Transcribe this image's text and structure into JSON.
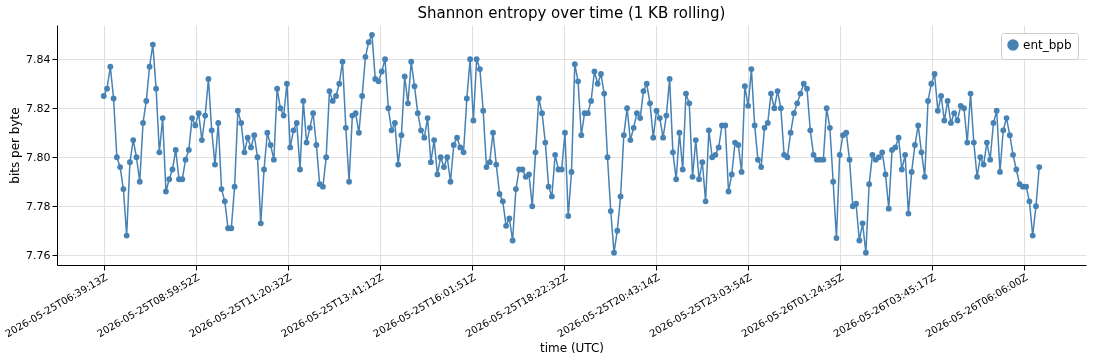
{
  "chart_data": {
    "type": "line",
    "title": "Shannon entropy over time (1 KB rolling)",
    "xlabel": "time (UTC)",
    "ylabel": "bits per byte",
    "xlim": [
      "2026-05-25T05:27:43",
      "2026-05-26T07:40:43"
    ],
    "ylim": [
      7.756,
      7.854
    ],
    "xticks": [
      {
        "value": "2026-05-25T06:39:13",
        "label": "2026-05-25T06:39:13Z"
      },
      {
        "value": "2026-05-25T08:59:52",
        "label": "2026-05-25T08:59:52Z"
      },
      {
        "value": "2026-05-25T11:20:32",
        "label": "2026-05-25T11:20:32Z"
      },
      {
        "value": "2026-05-25T13:41:12",
        "label": "2026-05-25T13:41:12Z"
      },
      {
        "value": "2026-05-25T16:01:51",
        "label": "2026-05-25T16:01:51Z"
      },
      {
        "value": "2026-05-25T18:22:32",
        "label": "2026-05-25T18:22:32Z"
      },
      {
        "value": "2026-05-25T20:43:14",
        "label": "2026-05-25T20:43:14Z"
      },
      {
        "value": "2026-05-25T23:03:54",
        "label": "2026-05-25T23:03:54Z"
      },
      {
        "value": "2026-05-26T01:24:35",
        "label": "2026-05-26T01:24:35Z"
      },
      {
        "value": "2026-05-26T03:45:17",
        "label": "2026-05-26T03:45:17Z"
      },
      {
        "value": "2026-05-26T06:06:00",
        "label": "2026-05-26T06:06:00Z"
      }
    ],
    "yticks": [
      7.76,
      7.78,
      {
        "value": 7.8,
        "label": "7.80"
      },
      7.82,
      7.84
    ],
    "grid": true,
    "legend": "top right",
    "marker": "circle",
    "line_style": "solid",
    "x": [
      "2026-05-25T06:39:13",
      "2026-05-25T06:44:13",
      "2026-05-25T06:49:13",
      "2026-05-25T06:54:13",
      "2026-05-25T06:59:13",
      "2026-05-25T07:04:13",
      "2026-05-25T07:09:13",
      "2026-05-25T07:14:13",
      "2026-05-25T07:19:13",
      "2026-05-25T07:24:13",
      "2026-05-25T07:29:13",
      "2026-05-25T07:34:13",
      "2026-05-25T07:39:13",
      "2026-05-25T07:44:13",
      "2026-05-25T07:49:13",
      "2026-05-25T07:54:13",
      "2026-05-25T07:59:13",
      "2026-05-25T08:04:13",
      "2026-05-25T08:09:13",
      "2026-05-25T08:14:13",
      "2026-05-25T08:19:13",
      "2026-05-25T08:24:13",
      "2026-05-25T08:29:13",
      "2026-05-25T08:34:13",
      "2026-05-25T08:39:13",
      "2026-05-25T08:44:13",
      "2026-05-25T08:49:13",
      "2026-05-25T08:54:13",
      "2026-05-25T08:59:13",
      "2026-05-25T09:04:13",
      "2026-05-25T09:09:13",
      "2026-05-25T09:14:13",
      "2026-05-25T09:19:13",
      "2026-05-25T09:24:13",
      "2026-05-25T09:29:13",
      "2026-05-25T09:34:13",
      "2026-05-25T09:39:13",
      "2026-05-25T09:44:13",
      "2026-05-25T09:49:13",
      "2026-05-25T09:54:13",
      "2026-05-25T09:59:13",
      "2026-05-25T10:04:13",
      "2026-05-25T10:09:13",
      "2026-05-25T10:14:13",
      "2026-05-25T10:19:13",
      "2026-05-25T10:24:13",
      "2026-05-25T10:29:13",
      "2026-05-25T10:34:13",
      "2026-05-25T10:39:13",
      "2026-05-25T10:44:13",
      "2026-05-25T10:49:13",
      "2026-05-25T10:54:13",
      "2026-05-25T10:59:13",
      "2026-05-25T11:04:13",
      "2026-05-25T11:09:13",
      "2026-05-25T11:14:13",
      "2026-05-25T11:19:13",
      "2026-05-25T11:24:13",
      "2026-05-25T11:29:13",
      "2026-05-25T11:34:13",
      "2026-05-25T11:39:13",
      "2026-05-25T11:44:13",
      "2026-05-25T11:49:13",
      "2026-05-25T11:54:13",
      "2026-05-25T11:59:13",
      "2026-05-25T12:04:13",
      "2026-05-25T12:09:13",
      "2026-05-25T12:14:13",
      "2026-05-25T12:19:13",
      "2026-05-25T12:24:13",
      "2026-05-25T12:29:13",
      "2026-05-25T12:34:13",
      "2026-05-25T12:39:13",
      "2026-05-25T12:44:13",
      "2026-05-25T12:49:13",
      "2026-05-25T12:54:13",
      "2026-05-25T12:59:13",
      "2026-05-25T13:04:13",
      "2026-05-25T13:09:13",
      "2026-05-25T13:14:13",
      "2026-05-25T13:19:13",
      "2026-05-25T13:24:13",
      "2026-05-25T13:29:13",
      "2026-05-25T13:34:13",
      "2026-05-25T13:39:13",
      "2026-05-25T13:44:13",
      "2026-05-25T13:49:13",
      "2026-05-25T13:54:13",
      "2026-05-25T13:59:13",
      "2026-05-25T14:04:13",
      "2026-05-25T14:09:13",
      "2026-05-25T14:14:13",
      "2026-05-25T14:19:13",
      "2026-05-25T14:24:13",
      "2026-05-25T14:29:13",
      "2026-05-25T14:34:13",
      "2026-05-25T14:39:13",
      "2026-05-25T14:44:13",
      "2026-05-25T14:49:13",
      "2026-05-25T14:54:13",
      "2026-05-25T14:59:13",
      "2026-05-25T15:04:13",
      "2026-05-25T15:09:13",
      "2026-05-25T15:14:13",
      "2026-05-25T15:19:13",
      "2026-05-25T15:24:13",
      "2026-05-25T15:29:13",
      "2026-05-25T15:34:13",
      "2026-05-25T15:39:13",
      "2026-05-25T15:44:13",
      "2026-05-25T15:49:13",
      "2026-05-25T15:54:13",
      "2026-05-25T15:59:13",
      "2026-05-25T16:04:13",
      "2026-05-25T16:09:13",
      "2026-05-25T16:14:13",
      "2026-05-25T16:19:13",
      "2026-05-25T16:24:13",
      "2026-05-25T16:29:13",
      "2026-05-25T16:34:13",
      "2026-05-25T16:39:13",
      "2026-05-25T16:44:13",
      "2026-05-25T16:49:13",
      "2026-05-25T16:54:13",
      "2026-05-25T16:59:13",
      "2026-05-25T17:04:13",
      "2026-05-25T17:09:13",
      "2026-05-25T17:14:13",
      "2026-05-25T17:19:13",
      "2026-05-25T17:24:13",
      "2026-05-25T17:29:13",
      "2026-05-25T17:34:13",
      "2026-05-25T17:39:13",
      "2026-05-25T17:44:13",
      "2026-05-25T17:49:13",
      "2026-05-25T17:54:13",
      "2026-05-25T17:59:13",
      "2026-05-25T18:04:13",
      "2026-05-25T18:09:13",
      "2026-05-25T18:14:13",
      "2026-05-25T18:19:13",
      "2026-05-25T18:24:13",
      "2026-05-25T18:29:13",
      "2026-05-25T18:34:13",
      "2026-05-25T18:39:13",
      "2026-05-25T18:44:13",
      "2026-05-25T18:49:13",
      "2026-05-25T18:54:13",
      "2026-05-25T18:59:13",
      "2026-05-25T19:04:13",
      "2026-05-25T19:09:13",
      "2026-05-25T19:14:13",
      "2026-05-25T19:19:13",
      "2026-05-25T19:24:13",
      "2026-05-25T19:29:13",
      "2026-05-25T19:34:13",
      "2026-05-25T19:39:13",
      "2026-05-25T19:44:13",
      "2026-05-25T19:49:13",
      "2026-05-25T19:54:13",
      "2026-05-25T19:59:13",
      "2026-05-25T20:04:13",
      "2026-05-25T20:09:13",
      "2026-05-25T20:14:13",
      "2026-05-25T20:19:13",
      "2026-05-25T20:24:13",
      "2026-05-25T20:29:13",
      "2026-05-25T20:34:13",
      "2026-05-25T20:39:13",
      "2026-05-25T20:44:13",
      "2026-05-25T20:49:13",
      "2026-05-25T20:54:13",
      "2026-05-25T20:59:13",
      "2026-05-25T21:04:13",
      "2026-05-25T21:09:13",
      "2026-05-25T21:14:13",
      "2026-05-25T21:19:13",
      "2026-05-25T21:24:13",
      "2026-05-25T21:29:13",
      "2026-05-25T21:34:13",
      "2026-05-25T21:39:13",
      "2026-05-25T21:44:13",
      "2026-05-25T21:49:13",
      "2026-05-25T21:54:13",
      "2026-05-25T21:59:13",
      "2026-05-25T22:04:13",
      "2026-05-25T22:09:13",
      "2026-05-25T22:14:13",
      "2026-05-25T22:19:13",
      "2026-05-25T22:24:13",
      "2026-05-25T22:29:13",
      "2026-05-25T22:34:13",
      "2026-05-25T22:39:13",
      "2026-05-25T22:44:13",
      "2026-05-25T22:49:13",
      "2026-05-25T22:54:13",
      "2026-05-25T22:59:13",
      "2026-05-25T23:04:13",
      "2026-05-25T23:09:13",
      "2026-05-25T23:14:13",
      "2026-05-25T23:19:13",
      "2026-05-25T23:24:13",
      "2026-05-25T23:29:13",
      "2026-05-25T23:34:13",
      "2026-05-25T23:39:13",
      "2026-05-25T23:44:13",
      "2026-05-25T23:49:13",
      "2026-05-25T23:54:13",
      "2026-05-25T23:59:13",
      "2026-05-26T00:04:13",
      "2026-05-26T00:09:13",
      "2026-05-26T00:14:13",
      "2026-05-26T00:19:13",
      "2026-05-26T00:24:13",
      "2026-05-26T00:29:13",
      "2026-05-26T00:34:13",
      "2026-05-26T00:39:13",
      "2026-05-26T00:44:13",
      "2026-05-26T00:49:13",
      "2026-05-26T00:54:13",
      "2026-05-26T00:59:13",
      "2026-05-26T01:04:13",
      "2026-05-26T01:09:13",
      "2026-05-26T01:14:13",
      "2026-05-26T01:19:13",
      "2026-05-26T01:24:13",
      "2026-05-26T01:29:13",
      "2026-05-26T01:34:13",
      "2026-05-26T01:39:13",
      "2026-05-26T01:44:13",
      "2026-05-26T01:49:13",
      "2026-05-26T01:54:13",
      "2026-05-26T01:59:13",
      "2026-05-26T02:04:13",
      "2026-05-26T02:09:13",
      "2026-05-26T02:14:13",
      "2026-05-26T02:19:13",
      "2026-05-26T02:24:13",
      "2026-05-26T02:29:13",
      "2026-05-26T02:34:13",
      "2026-05-26T02:39:13",
      "2026-05-26T02:44:13",
      "2026-05-26T02:49:13",
      "2026-05-26T02:54:13",
      "2026-05-26T02:59:13",
      "2026-05-26T03:04:13",
      "2026-05-26T03:09:13",
      "2026-05-26T03:14:13",
      "2026-05-26T03:19:13",
      "2026-05-26T03:24:13",
      "2026-05-26T03:29:13",
      "2026-05-26T03:34:13",
      "2026-05-26T03:39:13",
      "2026-05-26T03:44:13",
      "2026-05-26T03:49:13",
      "2026-05-26T03:54:13",
      "2026-05-26T03:59:13",
      "2026-05-26T04:04:13",
      "2026-05-26T04:09:13",
      "2026-05-26T04:14:13",
      "2026-05-26T04:19:13",
      "2026-05-26T04:24:13",
      "2026-05-26T04:29:13",
      "2026-05-26T04:34:13",
      "2026-05-26T04:39:13",
      "2026-05-26T04:44:13",
      "2026-05-26T04:49:13",
      "2026-05-26T04:54:13",
      "2026-05-26T04:59:13",
      "2026-05-26T05:04:13",
      "2026-05-26T05:09:13",
      "2026-05-26T05:14:13",
      "2026-05-26T05:19:13",
      "2026-05-26T05:24:13",
      "2026-05-26T05:29:13",
      "2026-05-26T05:34:13",
      "2026-05-26T05:39:13",
      "2026-05-26T05:44:13",
      "2026-05-26T05:49:13",
      "2026-05-26T05:54:13",
      "2026-05-26T05:59:13",
      "2026-05-26T06:04:13",
      "2026-05-26T06:09:13",
      "2026-05-26T06:14:13",
      "2026-05-26T06:19:13",
      "2026-05-26T06:24:13",
      "2026-05-26T06:29:13"
    ],
    "series": [
      {
        "name": "ent_bpb",
        "color": "#4682b4",
        "values": [
          7.825,
          7.828,
          7.837,
          7.824,
          7.8,
          7.796,
          7.787,
          7.768,
          7.798,
          7.807,
          7.8,
          7.79,
          7.814,
          7.823,
          7.837,
          7.846,
          7.828,
          7.802,
          7.816,
          7.786,
          7.791,
          7.795,
          7.803,
          7.791,
          7.791,
          7.799,
          7.803,
          7.816,
          7.813,
          7.818,
          7.807,
          7.817,
          7.832,
          7.811,
          7.797,
          7.814,
          7.787,
          7.782,
          7.771,
          7.771,
          7.788,
          7.819,
          7.814,
          7.802,
          7.808,
          7.804,
          7.809,
          7.8,
          7.773,
          7.795,
          7.81,
          7.805,
          7.799,
          7.828,
          7.82,
          7.817,
          7.83,
          7.804,
          7.811,
          7.814,
          7.795,
          7.823,
          7.806,
          7.812,
          7.818,
          7.805,
          7.789,
          7.788,
          7.8,
          7.827,
          7.823,
          7.825,
          7.83,
          7.839,
          7.812,
          7.79,
          7.817,
          7.818,
          7.81,
          7.825,
          7.841,
          7.847,
          7.85,
          7.832,
          7.831,
          7.835,
          7.84,
          7.82,
          7.811,
          7.814,
          7.797,
          7.809,
          7.833,
          7.822,
          7.839,
          7.829,
          7.818,
          7.811,
          7.808,
          7.816,
          7.798,
          7.807,
          7.793,
          7.8,
          7.796,
          7.8,
          7.79,
          7.805,
          7.808,
          7.804,
          7.802,
          7.824,
          7.84,
          7.815,
          7.84,
          7.836,
          7.819,
          7.796,
          7.798,
          7.81,
          7.797,
          7.785,
          7.782,
          7.772,
          7.775,
          7.766,
          7.787,
          7.795,
          7.795,
          7.792,
          7.793,
          7.78,
          7.802,
          7.824,
          7.818,
          7.806,
          7.788,
          7.784,
          7.801,
          7.795,
          7.795,
          7.81,
          7.776,
          7.794,
          7.838,
          7.831,
          7.809,
          7.818,
          7.818,
          7.823,
          7.835,
          7.83,
          7.834,
          7.826,
          7.8,
          7.778,
          7.761,
          7.77,
          7.784,
          7.809,
          7.82,
          7.807,
          7.812,
          7.818,
          7.816,
          7.827,
          7.83,
          7.822,
          7.808,
          7.819,
          7.816,
          7.808,
          7.817,
          7.832,
          7.802,
          7.791,
          7.81,
          7.795,
          7.826,
          7.822,
          7.792,
          7.807,
          7.791,
          7.798,
          7.782,
          7.811,
          7.8,
          7.801,
          7.804,
          7.813,
          7.813,
          7.786,
          7.793,
          7.806,
          7.805,
          7.794,
          7.829,
          7.821,
          7.836,
          7.813,
          7.799,
          7.796,
          7.812,
          7.814,
          7.826,
          7.82,
          7.827,
          7.82,
          7.801,
          7.8,
          7.81,
          7.818,
          7.822,
          7.826,
          7.83,
          7.828,
          7.811,
          7.801,
          7.799,
          7.799,
          7.799,
          7.82,
          7.812,
          7.79,
          7.767,
          7.801,
          7.809,
          7.81,
          7.799,
          7.78,
          7.781,
          7.766,
          7.773,
          7.761,
          7.789,
          7.801,
          7.799,
          7.8,
          7.802,
          7.793,
          7.779,
          7.803,
          7.804,
          7.808,
          7.795,
          7.801,
          7.777,
          7.794,
          7.805,
          7.813,
          7.802,
          7.792,
          7.823,
          7.83,
          7.834,
          7.819,
          7.825,
          7.815,
          7.823,
          7.814,
          7.818,
          7.815,
          7.821,
          7.82,
          7.806,
          7.826,
          7.806,
          7.792,
          7.8,
          7.797,
          7.806,
          7.799,
          7.814,
          7.819,
          7.794,
          7.811,
          7.816,
          7.809,
          7.801,
          7.795,
          7.789,
          7.788,
          7.788,
          7.782,
          7.768,
          7.78,
          7.796
        ]
      }
    ]
  }
}
